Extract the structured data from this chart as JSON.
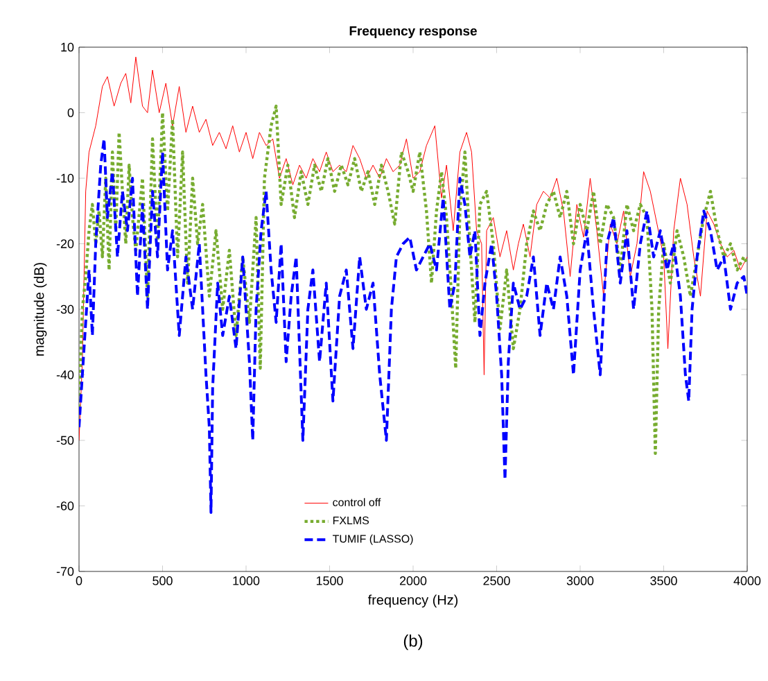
{
  "chart_data": {
    "type": "line",
    "title": "Frequency response",
    "xlabel": "frequency (Hz)",
    "ylabel": "magnitude (dB)",
    "annotations": [
      "(b)"
    ],
    "xlim": [
      0,
      4000
    ],
    "ylim": [
      -70,
      10
    ],
    "xticks": [
      0,
      500,
      1000,
      1500,
      2000,
      2500,
      3000,
      3500,
      4000
    ],
    "yticks": [
      -70,
      -60,
      -50,
      -40,
      -30,
      -20,
      -10,
      0,
      10
    ],
    "legend": "bottom",
    "marker": "none",
    "series": [
      {
        "name": "control off",
        "color": "#ff0000",
        "line_style": "solid",
        "x": [
          0,
          20,
          40,
          60,
          100,
          140,
          170,
          210,
          250,
          280,
          310,
          340,
          380,
          410,
          440,
          480,
          520,
          560,
          600,
          640,
          680,
          720,
          760,
          800,
          840,
          880,
          920,
          960,
          1000,
          1040,
          1080,
          1120,
          1160,
          1200,
          1240,
          1280,
          1320,
          1360,
          1400,
          1440,
          1480,
          1520,
          1560,
          1600,
          1640,
          1680,
          1720,
          1760,
          1800,
          1840,
          1880,
          1920,
          1960,
          2000,
          2040,
          2080,
          2130,
          2170,
          2200,
          2240,
          2280,
          2320,
          2350,
          2380,
          2410,
          2425,
          2440,
          2480,
          2520,
          2560,
          2600,
          2630,
          2660,
          2700,
          2740,
          2780,
          2820,
          2860,
          2900,
          2940,
          2980,
          3020,
          3060,
          3100,
          3140,
          3180,
          3220,
          3260,
          3300,
          3340,
          3380,
          3420,
          3460,
          3500,
          3525,
          3560,
          3600,
          3640,
          3680,
          3720,
          3760,
          3800,
          3840,
          3880,
          3920,
          3960,
          4000
        ],
        "values": [
          -50,
          -38,
          -12,
          -6,
          -2,
          4,
          5.5,
          1,
          4.5,
          6,
          1.5,
          8.5,
          1,
          0,
          6.5,
          0,
          4.5,
          -2,
          4,
          -3,
          1,
          -3,
          -1,
          -5,
          -3,
          -5.5,
          -2,
          -6,
          -3,
          -7,
          -3,
          -5,
          -4,
          -10,
          -7,
          -11,
          -8,
          -10,
          -7,
          -9,
          -6,
          -9,
          -8,
          -9,
          -5,
          -7,
          -10,
          -8,
          -10,
          -7,
          -9,
          -8,
          -4,
          -10,
          -9,
          -5,
          -2,
          -13,
          -8,
          -18,
          -6,
          -3,
          -6,
          -18,
          -20,
          -40,
          -18,
          -16,
          -22,
          -18,
          -24,
          -20,
          -17,
          -22,
          -14,
          -12,
          -13,
          -10,
          -15,
          -25,
          -14,
          -19,
          -10,
          -18,
          -28,
          -17,
          -20,
          -15,
          -25,
          -20,
          -9,
          -12,
          -17,
          -22,
          -36,
          -18,
          -10,
          -14,
          -22,
          -28,
          -15,
          -17,
          -20,
          -22,
          -21,
          -24,
          -22
        ]
      },
      {
        "name": "FXLMS",
        "color": "#77ac30",
        "line_style": "dotted",
        "x": [
          0,
          20,
          40,
          60,
          80,
          100,
          120,
          140,
          160,
          180,
          200,
          220,
          240,
          260,
          280,
          300,
          320,
          340,
          380,
          410,
          440,
          470,
          500,
          530,
          560,
          590,
          620,
          650,
          680,
          710,
          740,
          780,
          820,
          860,
          900,
          940,
          980,
          1020,
          1060,
          1085,
          1110,
          1150,
          1180,
          1210,
          1250,
          1290,
          1330,
          1370,
          1410,
          1450,
          1490,
          1530,
          1570,
          1610,
          1650,
          1690,
          1730,
          1770,
          1810,
          1850,
          1890,
          1930,
          1970,
          2000,
          2040,
          2080,
          2110,
          2140,
          2170,
          2200,
          2230,
          2255,
          2280,
          2310,
          2340,
          2370,
          2400,
          2440,
          2480,
          2520,
          2560,
          2600,
          2640,
          2680,
          2720,
          2760,
          2800,
          2840,
          2880,
          2920,
          2960,
          3000,
          3040,
          3080,
          3120,
          3160,
          3200,
          3240,
          3280,
          3320,
          3360,
          3400,
          3430,
          3450,
          3470,
          3500,
          3540,
          3580,
          3620,
          3660,
          3700,
          3740,
          3780,
          3820,
          3860,
          3900,
          3940,
          3980,
          4000
        ],
        "values": [
          -45,
          -30,
          -25,
          -18,
          -14,
          -20,
          -15,
          -22,
          -10,
          -24,
          -6,
          -18,
          -3,
          -12,
          -20,
          -8,
          -16,
          -21,
          -10,
          -28,
          -4,
          -20,
          0,
          -15,
          -1,
          -22,
          -6,
          -26,
          -10,
          -20,
          -14,
          -28,
          -18,
          -30,
          -21,
          -34,
          -22,
          -32,
          -16,
          -39,
          -10,
          -2,
          1,
          -14,
          -8,
          -16,
          -9,
          -14,
          -8,
          -12,
          -7,
          -12,
          -8,
          -11,
          -7,
          -12,
          -9,
          -14,
          -8,
          -12,
          -17,
          -6,
          -9,
          -12,
          -6,
          -15,
          -26,
          -15,
          -9,
          -16,
          -28,
          -39,
          -15,
          -6,
          -20,
          -32,
          -14,
          -12,
          -20,
          -33,
          -24,
          -36,
          -30,
          -20,
          -15,
          -18,
          -14,
          -12,
          -16,
          -12,
          -20,
          -14,
          -18,
          -12,
          -20,
          -14,
          -16,
          -24,
          -14,
          -18,
          -14,
          -16,
          -30,
          -52,
          -30,
          -20,
          -26,
          -18,
          -22,
          -28,
          -22,
          -16,
          -12,
          -18,
          -22,
          -20,
          -24,
          -22,
          -23
        ]
      },
      {
        "name": "TUMIF (LASSO)",
        "color": "#0000ff",
        "line_style": "dashed",
        "x": [
          0,
          20,
          40,
          60,
          80,
          100,
          130,
          150,
          170,
          200,
          230,
          260,
          290,
          320,
          350,
          380,
          410,
          440,
          470,
          500,
          530,
          560,
          600,
          640,
          680,
          720,
          760,
          780,
          790,
          800,
          830,
          860,
          900,
          940,
          980,
          1020,
          1040,
          1060,
          1090,
          1120,
          1150,
          1180,
          1210,
          1240,
          1270,
          1300,
          1340,
          1370,
          1400,
          1440,
          1480,
          1520,
          1560,
          1600,
          1640,
          1680,
          1720,
          1760,
          1800,
          1840,
          1870,
          1900,
          1940,
          1980,
          2020,
          2060,
          2100,
          2140,
          2180,
          2220,
          2250,
          2280,
          2310,
          2340,
          2370,
          2400,
          2430,
          2470,
          2500,
          2530,
          2550,
          2570,
          2600,
          2640,
          2680,
          2720,
          2760,
          2800,
          2840,
          2880,
          2920,
          2960,
          3000,
          3040,
          3080,
          3120,
          3160,
          3200,
          3240,
          3280,
          3320,
          3360,
          3400,
          3440,
          3480,
          3520,
          3560,
          3600,
          3630,
          3650,
          3670,
          3700,
          3740,
          3780,
          3820,
          3860,
          3900,
          3940,
          3980,
          4000
        ],
        "values": [
          -48,
          -40,
          -32,
          -24,
          -34,
          -20,
          -8,
          -4,
          -16,
          -9,
          -22,
          -12,
          -18,
          -10,
          -28,
          -14,
          -30,
          -12,
          -22,
          -6,
          -24,
          -18,
          -34,
          -22,
          -30,
          -20,
          -40,
          -48,
          -61,
          -42,
          -26,
          -34,
          -28,
          -36,
          -22,
          -38,
          -50,
          -30,
          -18,
          -12,
          -24,
          -32,
          -20,
          -38,
          -28,
          -22,
          -50,
          -30,
          -24,
          -38,
          -26,
          -44,
          -28,
          -24,
          -36,
          -22,
          -30,
          -26,
          -40,
          -50,
          -30,
          -22,
          -20,
          -19,
          -24,
          -22,
          -20,
          -24,
          -13,
          -30,
          -26,
          -10,
          -14,
          -22,
          -18,
          -34,
          -26,
          -20,
          -28,
          -40,
          -56,
          -38,
          -26,
          -30,
          -28,
          -22,
          -34,
          -26,
          -30,
          -22,
          -28,
          -40,
          -24,
          -18,
          -30,
          -40,
          -20,
          -16,
          -26,
          -18,
          -30,
          -20,
          -15,
          -22,
          -18,
          -24,
          -20,
          -28,
          -40,
          -44,
          -30,
          -22,
          -15,
          -18,
          -24,
          -22,
          -30,
          -26,
          -25,
          -28
        ]
      }
    ]
  }
}
